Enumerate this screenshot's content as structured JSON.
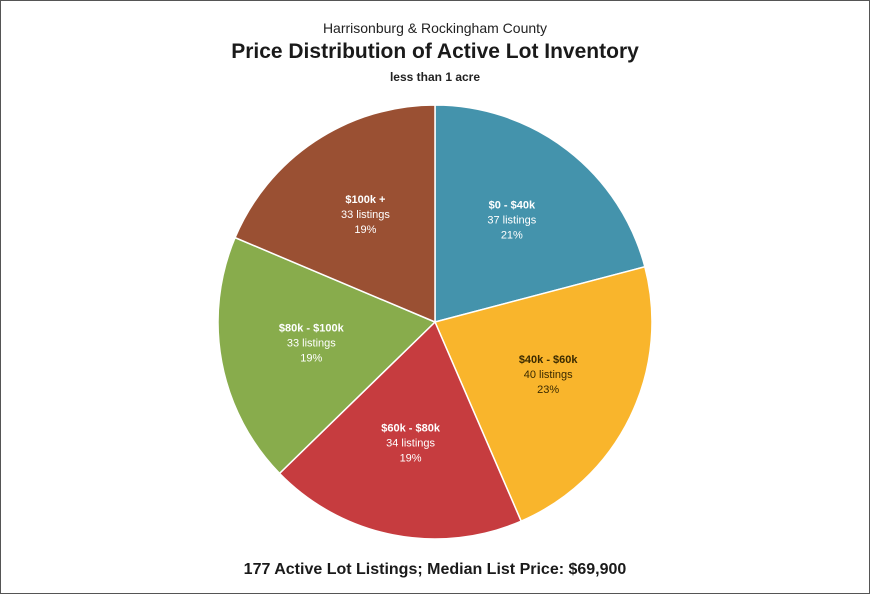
{
  "chart_data": {
    "type": "pie",
    "supertitle": "Harrisonburg & Rockingham County",
    "title": "Price Distribution of Active Lot Inventory",
    "subtitle": "less than 1 acre",
    "footer": "177 Active Lot Listings;  Median List Price: $69,900",
    "slices": [
      {
        "label": "$0 - $40k",
        "value": 37,
        "count_label": "37 listings",
        "pct_label": "21%",
        "color": "#4493AC",
        "text_color": "#ffffff"
      },
      {
        "label": "$40k - $60k",
        "value": 40,
        "count_label": "40 listings",
        "pct_label": "23%",
        "color": "#F9B52C",
        "text_color": "#3a2a00"
      },
      {
        "label": "$60k - $80k",
        "value": 34,
        "count_label": "34 listings",
        "pct_label": "19%",
        "color": "#C63C3F",
        "text_color": "#ffffff"
      },
      {
        "label": "$80k - $100k",
        "value": 33,
        "count_label": "33 listings",
        "pct_label": "19%",
        "color": "#88AC4C",
        "text_color": "#ffffff"
      },
      {
        "label": "$100k +",
        "value": 33,
        "count_label": "33 listings",
        "pct_label": "19%",
        "color": "#9A5033",
        "text_color": "#ffffff"
      }
    ],
    "start_angle": "12 o'clock",
    "direction": "clockwise"
  }
}
